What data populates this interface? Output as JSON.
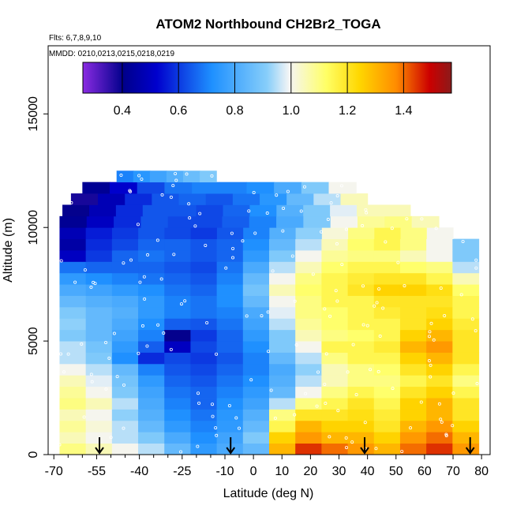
{
  "chart_data": {
    "type": "heatmap",
    "title": "ATOM2 Northbound CH2Br2_TOGA",
    "subtitle_flights": "Flts: 6,7,8,9,10",
    "subtitle_dates": "MMDD: 0210,0213,0215,0218,0219",
    "xlabel": "Latitude (deg N)",
    "ylabel": "Altitude (m)",
    "xlim": [
      -72,
      83
    ],
    "ylim": [
      0,
      18000
    ],
    "x_ticks_major": [
      -70,
      -55,
      -40,
      -25,
      -10,
      0,
      10,
      20,
      30,
      40,
      50,
      60,
      70,
      80
    ],
    "x_ticks_minor": [
      -65,
      -60,
      -50,
      -45,
      -35,
      -30,
      -20,
      -15,
      -5
    ],
    "y_ticks": [
      0,
      5000,
      10000,
      15000
    ],
    "colorbar": {
      "min": 0.26,
      "max": 1.57,
      "ticks": [
        0.4,
        0.6,
        0.8,
        1.0,
        1.2,
        1.4
      ],
      "colors": [
        "#8a2be2",
        "#00008b",
        "#0000cd",
        "#1e90ff",
        "#87cefa",
        "#f5f5f5",
        "#ffff66",
        "#ffd700",
        "#ff8c00",
        "#cc0000",
        "#8b1a1a"
      ]
    },
    "color_scale_stops": [
      0.0,
      0.11,
      0.2,
      0.35,
      0.5,
      0.56,
      0.66,
      0.75,
      0.85,
      0.94,
      1.0
    ],
    "arrow_latitudes": [
      -54,
      -8,
      39,
      76
    ],
    "altitude_bands": [
      {
        "alt": 250,
        "lat_min": -68,
        "lat_max": 79,
        "values": [
          1.1,
          1.05,
          1.0,
          0.95,
          0.85,
          0.75,
          0.8,
          0.85,
          1.3,
          1.45,
          1.4,
          1.35,
          1.3,
          1.4,
          1.45,
          1.35
        ]
      },
      {
        "alt": 750,
        "lat_min": -68,
        "lat_max": 79,
        "values": [
          1.05,
          1.0,
          0.95,
          0.9,
          0.8,
          0.72,
          0.78,
          0.9,
          1.25,
          1.35,
          1.3,
          1.3,
          1.25,
          1.35,
          1.4,
          1.3
        ]
      },
      {
        "alt": 1250,
        "lat_min": -68,
        "lat_max": 79,
        "values": [
          1.08,
          1.02,
          0.95,
          0.85,
          0.75,
          0.7,
          0.75,
          0.85,
          1.15,
          1.3,
          1.25,
          1.25,
          1.2,
          1.3,
          1.35,
          1.25
        ]
      },
      {
        "alt": 1750,
        "lat_min": -68,
        "lat_max": 79,
        "values": [
          1.05,
          1.0,
          0.92,
          0.82,
          0.72,
          0.68,
          0.74,
          0.82,
          1.1,
          1.2,
          1.2,
          1.22,
          1.18,
          1.25,
          1.3,
          1.2
        ]
      },
      {
        "alt": 2250,
        "lat_min": -68,
        "lat_max": 79,
        "values": [
          1.1,
          1.05,
          0.95,
          0.8,
          0.7,
          0.66,
          0.72,
          0.78,
          0.95,
          1.1,
          1.15,
          1.2,
          1.15,
          1.25,
          1.3,
          1.2
        ]
      },
      {
        "alt": 2750,
        "lat_min": -68,
        "lat_max": 79,
        "values": [
          1.08,
          1.0,
          0.9,
          0.78,
          0.68,
          0.66,
          0.7,
          0.75,
          0.85,
          1.0,
          1.1,
          1.15,
          1.12,
          1.2,
          1.25,
          1.15
        ]
      },
      {
        "alt": 3250,
        "lat_min": -68,
        "lat_max": 79,
        "values": [
          1.05,
          0.98,
          0.88,
          0.75,
          0.66,
          0.64,
          0.68,
          0.72,
          0.82,
          0.95,
          1.05,
          1.1,
          1.1,
          1.15,
          1.2,
          1.1
        ]
      },
      {
        "alt": 3750,
        "lat_min": -68,
        "lat_max": 79,
        "values": [
          1.0,
          0.95,
          0.85,
          0.7,
          0.64,
          0.62,
          0.66,
          0.7,
          0.8,
          0.92,
          1.05,
          1.1,
          1.12,
          1.2,
          1.25,
          1.15
        ]
      },
      {
        "alt": 4250,
        "lat_min": -68,
        "lat_max": 79,
        "values": [
          0.95,
          0.9,
          0.72,
          0.58,
          0.62,
          0.6,
          0.64,
          0.7,
          0.85,
          0.95,
          1.1,
          1.15,
          1.15,
          1.25,
          1.3,
          1.2
        ]
      },
      {
        "alt": 4750,
        "lat_min": -68,
        "lat_max": 79,
        "values": [
          0.95,
          0.88,
          0.75,
          0.65,
          0.5,
          0.62,
          0.66,
          0.72,
          0.9,
          1.0,
          1.15,
          1.15,
          1.18,
          1.3,
          1.35,
          1.2
        ]
      },
      {
        "alt": 5250,
        "lat_min": -68,
        "lat_max": 79,
        "values": [
          0.9,
          0.85,
          0.78,
          0.7,
          0.4,
          0.6,
          0.66,
          0.75,
          0.9,
          1.05,
          1.1,
          1.12,
          1.15,
          1.25,
          1.3,
          1.2
        ]
      },
      {
        "alt": 5750,
        "lat_min": -68,
        "lat_max": 79,
        "values": [
          0.92,
          0.85,
          0.8,
          0.72,
          0.65,
          0.64,
          0.68,
          0.78,
          0.95,
          1.08,
          1.12,
          1.15,
          1.15,
          1.2,
          1.25,
          1.18
        ]
      },
      {
        "alt": 6250,
        "lat_min": -68,
        "lat_max": 79,
        "values": [
          0.9,
          0.85,
          0.82,
          0.75,
          0.7,
          0.68,
          0.7,
          0.8,
          0.98,
          1.1,
          1.12,
          1.15,
          1.18,
          1.2,
          1.22,
          1.15
        ]
      },
      {
        "alt": 6750,
        "lat_min": -68,
        "lat_max": 79,
        "values": [
          0.85,
          0.82,
          0.8,
          0.75,
          0.7,
          0.68,
          0.72,
          0.85,
          1.0,
          1.1,
          1.15,
          1.15,
          1.2,
          1.2,
          1.2,
          1.15
        ]
      },
      {
        "alt": 7250,
        "lat_min": -68,
        "lat_max": 79,
        "values": [
          0.8,
          0.78,
          0.75,
          0.72,
          0.68,
          0.66,
          0.72,
          0.88,
          1.05,
          1.12,
          1.15,
          1.2,
          1.25,
          1.25,
          1.22,
          1.12
        ]
      },
      {
        "alt": 7750,
        "lat_min": -68,
        "lat_max": 79,
        "values": [
          0.75,
          0.72,
          0.7,
          0.68,
          0.66,
          0.64,
          0.7,
          0.85,
          1.0,
          1.1,
          1.15,
          1.18,
          1.2,
          1.2,
          1.15,
          1.05
        ]
      },
      {
        "alt": 8250,
        "lat_min": -68,
        "lat_max": 79,
        "values": [
          0.68,
          0.66,
          0.66,
          0.66,
          0.64,
          0.62,
          0.68,
          0.8,
          0.95,
          1.05,
          1.12,
          1.15,
          1.15,
          1.12,
          1.1,
          0.95
        ]
      },
      {
        "alt": 8750,
        "lat_min": -68,
        "lat_max": 79,
        "values": [
          0.5,
          0.6,
          0.66,
          0.68,
          0.66,
          0.64,
          0.66,
          0.75,
          0.9,
          1.0,
          1.08,
          1.1,
          1.1,
          1.05,
          1.0,
          0.9
        ]
      },
      {
        "alt": 9250,
        "lat_min": -68,
        "lat_max": 79,
        "values": [
          0.45,
          0.58,
          0.62,
          0.66,
          0.66,
          0.64,
          0.66,
          0.72,
          0.85,
          0.95,
          1.05,
          1.12,
          1.15,
          1.1,
          1.0,
          0.9
        ]
      },
      {
        "alt": 9750,
        "lat_min": -68,
        "lat_max": 70,
        "values": [
          0.48,
          0.56,
          0.6,
          0.64,
          0.62,
          0.6,
          0.64,
          0.7,
          0.82,
          0.92,
          1.02,
          1.1,
          1.15,
          1.1,
          1.0
        ]
      },
      {
        "alt": 10250,
        "lat_min": -68,
        "lat_max": 65,
        "values": [
          0.42,
          0.5,
          0.58,
          0.64,
          0.62,
          0.62,
          0.65,
          0.7,
          0.8,
          0.9,
          1.0,
          1.08,
          1.1,
          1.05
        ]
      },
      {
        "alt": 10750,
        "lat_min": -67,
        "lat_max": 55,
        "values": [
          0.4,
          0.48,
          0.58,
          0.64,
          0.64,
          0.62,
          0.66,
          0.72,
          0.82,
          0.9,
          0.98,
          1.05,
          1.05
        ]
      },
      {
        "alt": 11250,
        "lat_min": -64,
        "lat_max": 40,
        "values": [
          0.38,
          0.48,
          0.58,
          0.64,
          0.66,
          0.64,
          0.68,
          0.74,
          0.85,
          0.95,
          1.05
        ]
      },
      {
        "alt": 11750,
        "lat_min": -60,
        "lat_max": 36,
        "values": [
          0.42,
          0.52,
          0.62,
          0.68,
          0.7,
          0.7,
          0.72,
          0.8,
          0.9,
          1.0
        ]
      },
      {
        "alt": 12250,
        "lat_min": -48,
        "lat_max": -13,
        "values": [
          0.7,
          0.74,
          0.78,
          0.82,
          0.86,
          0.9
        ]
      }
    ]
  }
}
